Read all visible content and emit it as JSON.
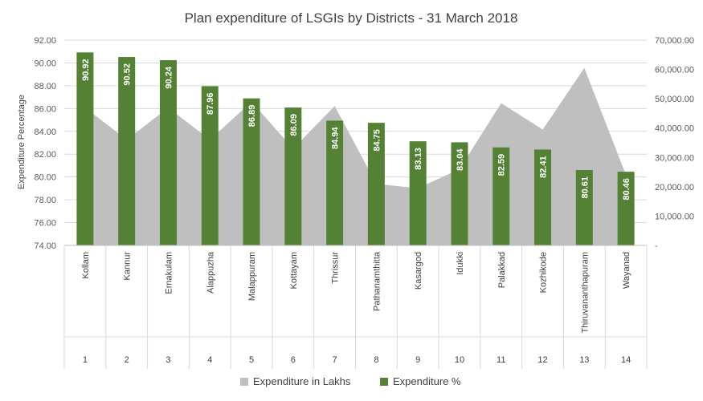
{
  "chart_data": {
    "type": "bar",
    "title": "Plan expenditure of LSGIs by Districts - 31 March 2018",
    "ylabel": "Expenditure Percentage",
    "ylim": [
      74,
      92
    ],
    "y2lim": [
      0,
      70000
    ],
    "y_ticks": [
      "74.00",
      "76.00",
      "78.00",
      "80.00",
      "82.00",
      "84.00",
      "86.00",
      "88.00",
      "90.00",
      "92.00"
    ],
    "y2_ticks": [
      "-",
      "10,000.00",
      "20,000.00",
      "30,000.00",
      "40,000.00",
      "50,000.00",
      "60,000.00",
      "70,000.00"
    ],
    "categories": [
      "Kollam",
      "Kannur",
      "Ernakulam",
      "Alappuzha",
      "Malappuram",
      "Kottayam",
      "Thrissur",
      "Pathanamthitta",
      "Kasargod",
      "Idukki",
      "Palakkad",
      "Kozhikode",
      "Thiruvananthapuram",
      "Wayanad"
    ],
    "serial_numbers": [
      "1",
      "2",
      "3",
      "4",
      "5",
      "6",
      "7",
      "8",
      "9",
      "10",
      "11",
      "12",
      "13",
      "14"
    ],
    "series": [
      {
        "name": "Expenditure in Lakhs",
        "type": "area",
        "axis": "secondary",
        "color": "#bfbfbf",
        "values": [
          47000,
          36000,
          47000,
          36000,
          49000,
          33000,
          47500,
          21000,
          19500,
          26000,
          48500,
          39500,
          60500,
          24000
        ]
      },
      {
        "name": "Expenditure %",
        "type": "bar",
        "axis": "primary",
        "color": "#548235",
        "values": [
          90.92,
          90.52,
          90.24,
          87.96,
          86.89,
          86.09,
          84.94,
          84.75,
          83.13,
          83.04,
          82.59,
          82.41,
          80.61,
          80.46
        ],
        "labels": [
          "90.92",
          "90.52",
          "90.24",
          "87.96",
          "86.89",
          "86.09",
          "84.94",
          "84.75",
          "83.13",
          "83.04",
          "82.59",
          "82.41",
          "80.61",
          "80.46"
        ]
      }
    ],
    "grid": true,
    "legend_position": "bottom"
  }
}
